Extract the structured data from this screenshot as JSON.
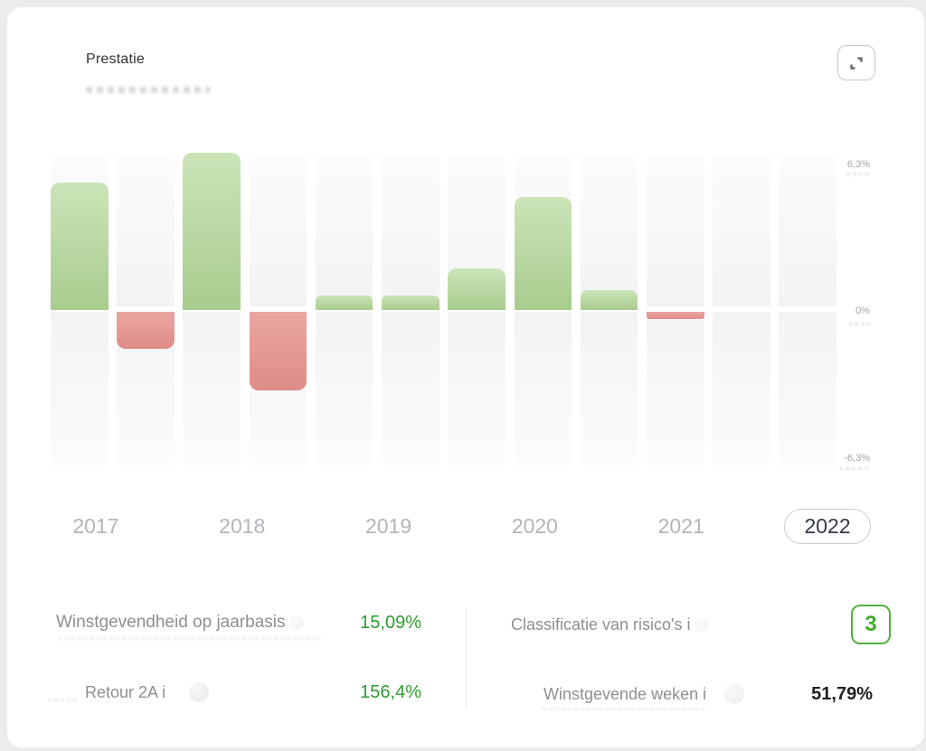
{
  "header": {
    "title": "Prestatie"
  },
  "toolbar": {
    "expand_icon": "expand-icon"
  },
  "chart_data": {
    "type": "bar",
    "title": "Prestatie",
    "x": [
      "2017 H1",
      "2017 H2",
      "2018 H1",
      "2018 H2",
      "2019 H1",
      "2019 H2",
      "2020 H1",
      "2020 H2",
      "2021 H1",
      "2021 H2",
      "2022 H1",
      "2022 H2"
    ],
    "values": [
      5.2,
      -1.5,
      6.4,
      -3.2,
      0.6,
      0.6,
      1.7,
      4.6,
      0.8,
      -0.3,
      0,
      0
    ],
    "unit": "%",
    "ylim": [
      -6.3,
      6.3
    ],
    "y_ticks": [
      "6,3%",
      "0%",
      "-6,3%"
    ],
    "grid": false,
    "legend": "none",
    "positive_color": "#b7d79f",
    "negative_color": "#e49792",
    "years": [
      "2017",
      "2018",
      "2019",
      "2020",
      "2021",
      "2022"
    ],
    "selected_year": "2022"
  },
  "stats": {
    "left": [
      {
        "label": "Winstgevendheid op jaarbasis",
        "value": "15,09%",
        "icon": "info-icon"
      },
      {
        "label": "Retour 2A i",
        "value": "156,4%",
        "icon": "info-icon"
      }
    ],
    "right": [
      {
        "label": "Classificatie van risico's i",
        "value": "3",
        "icon": "info-icon"
      },
      {
        "label": "Winstgevende weken i",
        "value": "51,79%",
        "icon": "info-icon"
      }
    ]
  },
  "colors": {
    "value_green": "#2e9b2e",
    "risk_badge_green": "#55b13c",
    "year_selected_text": "#333a45",
    "year_text": "#b2b5b9"
  }
}
